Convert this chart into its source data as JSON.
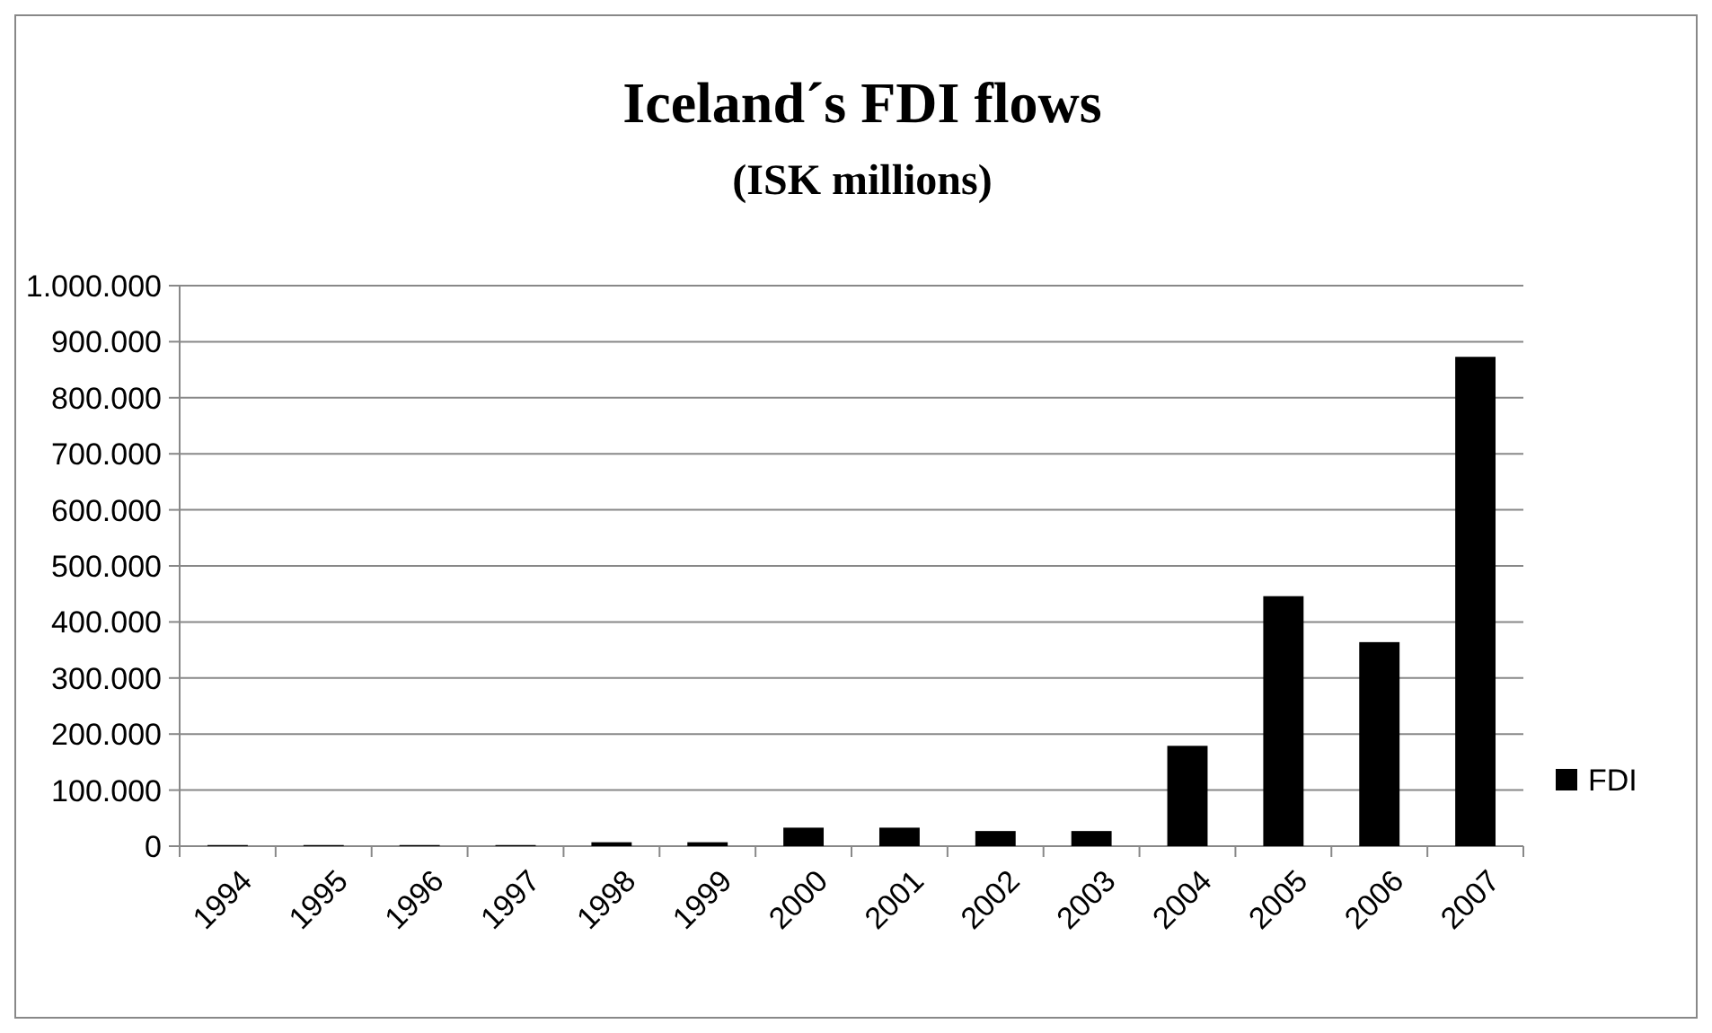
{
  "chart_data": {
    "type": "bar",
    "title": "Iceland´s FDI flows",
    "subtitle": "(ISK millions)",
    "categories": [
      "1994",
      "1995",
      "1996",
      "1997",
      "1998",
      "1999",
      "2000",
      "2001",
      "2002",
      "2003",
      "2004",
      "2005",
      "2006",
      "2007"
    ],
    "series": [
      {
        "name": "FDI",
        "color": "#000000",
        "values": [
          2000,
          2000,
          2000,
          2000,
          7000,
          7000,
          33000,
          33000,
          27000,
          27000,
          179000,
          446000,
          364000,
          873000
        ]
      }
    ],
    "ylim": [
      0,
      1000000
    ],
    "yticks": [
      {
        "value": 0,
        "label": "0"
      },
      {
        "value": 100000,
        "label": "100.000"
      },
      {
        "value": 200000,
        "label": "200.000"
      },
      {
        "value": 300000,
        "label": "300.000"
      },
      {
        "value": 400000,
        "label": "400.000"
      },
      {
        "value": 500000,
        "label": "500.000"
      },
      {
        "value": 600000,
        "label": "600.000"
      },
      {
        "value": 700000,
        "label": "700.000"
      },
      {
        "value": 800000,
        "label": "800.000"
      },
      {
        "value": 900000,
        "label": "900.000"
      },
      {
        "value": 1000000,
        "label": "1.000.000"
      }
    ],
    "grid": "y",
    "legend": "right"
  }
}
